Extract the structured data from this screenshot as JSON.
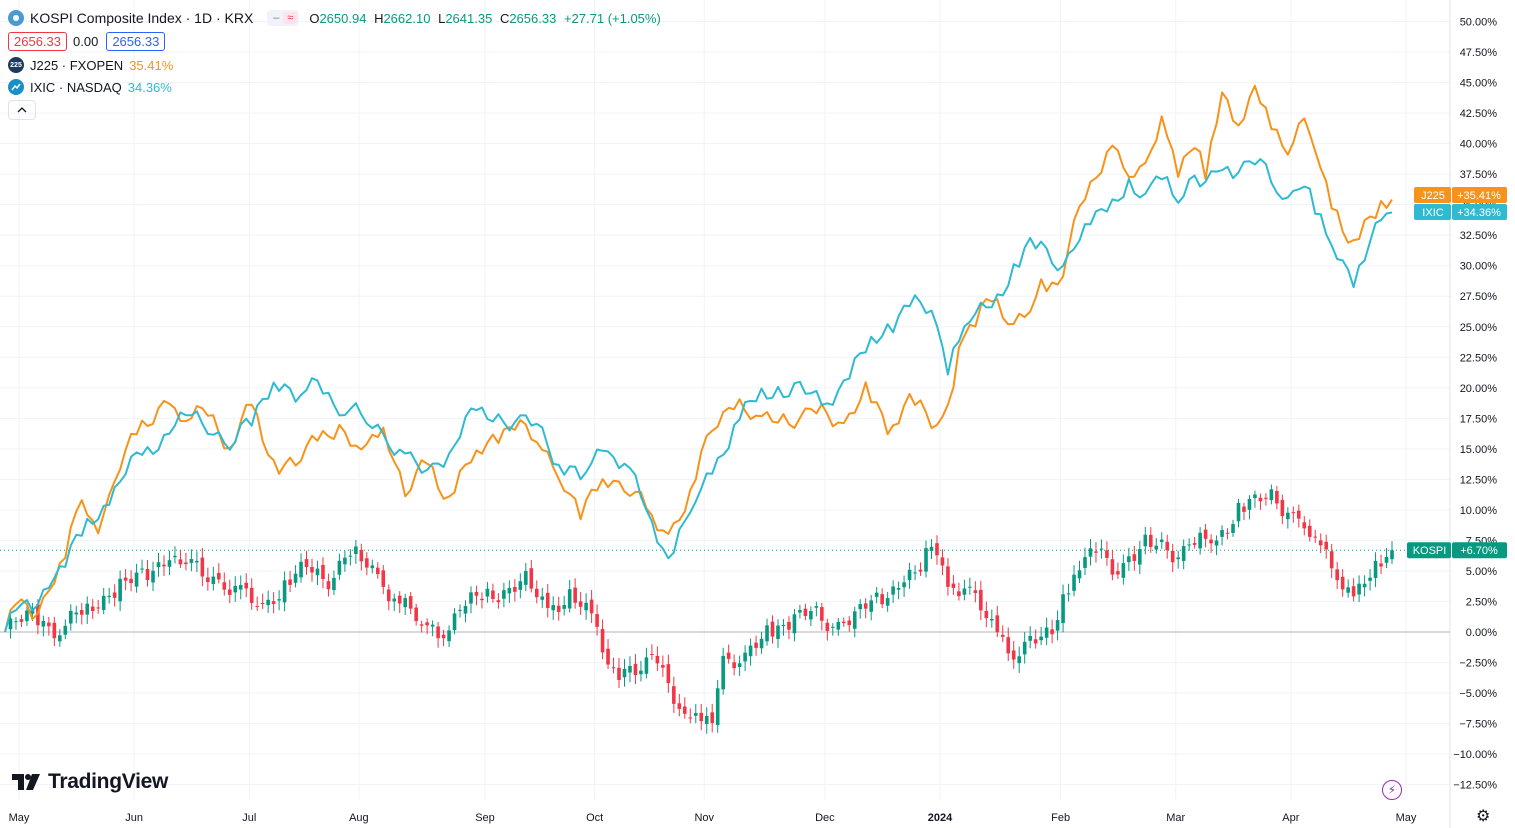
{
  "header": {
    "title": "KOSPI Composite Index · 1D · KRX",
    "toggle_a": "–",
    "toggle_b": "≈",
    "ohlc": [
      {
        "k": "O",
        "v": "2650.94"
      },
      {
        "k": "H",
        "v": "2662.10"
      },
      {
        "k": "L",
        "v": "2641.35"
      },
      {
        "k": "C",
        "v": "2656.33"
      }
    ],
    "change": "+27.71 (+1.05%)",
    "bid": "2656.33",
    "spread": "0.00",
    "ask": "2656.33"
  },
  "compares": [
    {
      "name": "J225 · FXOPEN",
      "pct": "35.41%",
      "logo": "225",
      "color": "#f7931a"
    },
    {
      "name": "IXIC · NASDAQ",
      "pct": "34.36%",
      "color": "#2ebad1"
    }
  ],
  "brand": "TradingView",
  "colors": {
    "up": "#089981",
    "down": "#f23645",
    "j225": "#f7931a",
    "ixic": "#2ebad1",
    "kospi_tag": "#089981",
    "grid": "#f0f3fa",
    "text": "#131722"
  },
  "chart_data": {
    "type": "line",
    "title": "KOSPI Composite Index · 1D · KRX",
    "ylim": [
      -13.5,
      51
    ],
    "y_ticks": [
      "50.00%",
      "47.50%",
      "45.00%",
      "42.50%",
      "40.00%",
      "37.50%",
      "35.00%",
      "32.50%",
      "30.00%",
      "27.50%",
      "25.00%",
      "22.50%",
      "20.00%",
      "17.50%",
      "15.00%",
      "12.50%",
      "10.00%",
      "7.50%",
      "5.00%",
      "2.50%",
      "0.00%",
      "−2.50%",
      "−5.00%",
      "−7.50%",
      "−10.00%",
      "−12.50%"
    ],
    "x_ticks": [
      "May",
      "Jun",
      "Jul",
      "Aug",
      "Sep",
      "Oct",
      "Nov",
      "Dec",
      "2024",
      "Feb",
      "Mar",
      "Apr",
      "May"
    ],
    "x_tick_index": [
      0,
      21,
      42,
      62,
      85,
      105,
      125,
      147,
      168,
      190,
      211,
      232,
      253
    ],
    "baseline": 0,
    "last_values": [
      {
        "label": "J225",
        "value": "+35.41%",
        "num": 35.41
      },
      {
        "label": "IXIC",
        "value": "+34.36%",
        "num": 34.36
      },
      {
        "label": "KOSPI",
        "value": "+6.70%",
        "num": 6.7
      }
    ],
    "series": [
      {
        "name": "J225",
        "anchors": [
          [
            0,
            0
          ],
          [
            2,
            2
          ],
          [
            5,
            1.5
          ],
          [
            8,
            3.5
          ],
          [
            11,
            6
          ],
          [
            14,
            11
          ],
          [
            17,
            8
          ],
          [
            20,
            13
          ],
          [
            24,
            16
          ],
          [
            29,
            19
          ],
          [
            33,
            17
          ],
          [
            37,
            18.5
          ],
          [
            41,
            15
          ],
          [
            45,
            18.5
          ],
          [
            49,
            14
          ],
          [
            53,
            13.5
          ],
          [
            57,
            16
          ],
          [
            61,
            17
          ],
          [
            65,
            14
          ],
          [
            69,
            17.5
          ],
          [
            73,
            11
          ],
          [
            77,
            14
          ],
          [
            81,
            11
          ],
          [
            85,
            14
          ],
          [
            89,
            16
          ],
          [
            93,
            17
          ],
          [
            97,
            15.5
          ],
          [
            101,
            13.5
          ],
          [
            105,
            9
          ],
          [
            109,
            13
          ],
          [
            113,
            12
          ],
          [
            117,
            10
          ],
          [
            121,
            8
          ],
          [
            125,
            11
          ],
          [
            129,
            17
          ],
          [
            133,
            19
          ],
          [
            137,
            17
          ],
          [
            141,
            18
          ],
          [
            145,
            17
          ],
          [
            149,
            18.5
          ],
          [
            153,
            17
          ],
          [
            157,
            19.5
          ],
          [
            161,
            17
          ],
          [
            165,
            19
          ],
          [
            169,
            17
          ],
          [
            172,
            18.5
          ],
          [
            174,
            23.5
          ],
          [
            177,
            25
          ],
          [
            180,
            27.5
          ],
          [
            183,
            26
          ],
          [
            186,
            25.5
          ],
          [
            189,
            28
          ],
          [
            192,
            28.5
          ],
          [
            196,
            35
          ],
          [
            199,
            36.5
          ],
          [
            202,
            40
          ],
          [
            205,
            38
          ],
          [
            208,
            37.5
          ],
          [
            211,
            42
          ],
          [
            214,
            38
          ],
          [
            217,
            40
          ],
          [
            219,
            37
          ],
          [
            222,
            44.5
          ],
          [
            225,
            42
          ],
          [
            228,
            44
          ],
          [
            231,
            41
          ],
          [
            234,
            40
          ],
          [
            237,
            42
          ],
          [
            239,
            38.5
          ],
          [
            242,
            35
          ],
          [
            246,
            32
          ],
          [
            250,
            34
          ],
          [
            253,
            35.41
          ]
        ]
      },
      {
        "name": "IXIC",
        "anchors": [
          [
            0,
            0
          ],
          [
            2,
            1.5
          ],
          [
            5,
            2
          ],
          [
            8,
            4
          ],
          [
            11,
            5.5
          ],
          [
            14,
            8
          ],
          [
            17,
            10
          ],
          [
            20,
            12
          ],
          [
            24,
            14
          ],
          [
            27,
            15
          ],
          [
            30,
            16.5
          ],
          [
            33,
            17.5
          ],
          [
            37,
            17
          ],
          [
            41,
            15.5
          ],
          [
            45,
            17
          ],
          [
            49,
            21
          ],
          [
            53,
            19
          ],
          [
            57,
            20.5
          ],
          [
            61,
            18.5
          ],
          [
            65,
            17.5
          ],
          [
            69,
            16.5
          ],
          [
            73,
            14
          ],
          [
            77,
            13
          ],
          [
            81,
            15
          ],
          [
            85,
            17.5
          ],
          [
            89,
            18
          ],
          [
            93,
            17
          ],
          [
            97,
            17
          ],
          [
            101,
            14
          ],
          [
            105,
            12.5
          ],
          [
            109,
            15
          ],
          [
            113,
            14
          ],
          [
            117,
            10
          ],
          [
            121,
            6
          ],
          [
            125,
            10
          ],
          [
            129,
            13
          ],
          [
            133,
            17
          ],
          [
            137,
            19
          ],
          [
            141,
            20
          ],
          [
            145,
            20
          ],
          [
            149,
            18.5
          ],
          [
            153,
            20.5
          ],
          [
            157,
            23
          ],
          [
            161,
            25
          ],
          [
            165,
            27
          ],
          [
            169,
            26
          ],
          [
            172,
            22
          ],
          [
            175,
            25.5
          ],
          [
            178,
            26
          ],
          [
            181,
            27.5
          ],
          [
            184,
            30
          ],
          [
            187,
            31.5
          ],
          [
            190,
            31
          ],
          [
            193,
            30
          ],
          [
            196,
            32.5
          ],
          [
            199,
            34
          ],
          [
            202,
            35.5
          ],
          [
            205,
            37
          ],
          [
            208,
            35
          ],
          [
            211,
            37.5
          ],
          [
            214,
            36
          ],
          [
            217,
            37
          ],
          [
            219,
            36
          ],
          [
            222,
            38.5
          ],
          [
            225,
            38
          ],
          [
            228,
            38.5
          ],
          [
            231,
            37
          ],
          [
            234,
            35.5
          ],
          [
            237,
            37
          ],
          [
            239,
            34
          ],
          [
            242,
            32
          ],
          [
            246,
            29
          ],
          [
            250,
            32.5
          ],
          [
            253,
            34.36
          ]
        ]
      },
      {
        "name": "KOSPI",
        "anchors": [
          [
            0,
            0
          ],
          [
            5,
            1.5
          ],
          [
            10,
            0
          ],
          [
            15,
            2
          ],
          [
            20,
            3.5
          ],
          [
            25,
            4.5
          ],
          [
            29,
            6
          ],
          [
            33,
            5.5
          ],
          [
            38,
            4.5
          ],
          [
            43,
            3
          ],
          [
            47,
            2
          ],
          [
            51,
            4
          ],
          [
            55,
            5
          ],
          [
            59,
            4.5
          ],
          [
            63,
            6.5
          ],
          [
            67,
            5
          ],
          [
            71,
            3
          ],
          [
            75,
            1
          ],
          [
            79,
            0
          ],
          [
            83,
            1.5
          ],
          [
            87,
            3
          ],
          [
            91,
            3.5
          ],
          [
            95,
            4
          ],
          [
            99,
            2
          ],
          [
            103,
            3
          ],
          [
            107,
            1
          ],
          [
            111,
            -3
          ],
          [
            115,
            -3.5
          ],
          [
            119,
            -2
          ],
          [
            123,
            -6
          ],
          [
            127,
            -8
          ],
          [
            129,
            -7
          ],
          [
            131,
            -2
          ],
          [
            135,
            -2.5
          ],
          [
            139,
            0
          ],
          [
            143,
            1
          ],
          [
            147,
            1.5
          ],
          [
            151,
            0.5
          ],
          [
            155,
            1.5
          ],
          [
            159,
            2.5
          ],
          [
            163,
            4
          ],
          [
            167,
            5
          ],
          [
            169,
            6.8
          ],
          [
            172,
            4.5
          ],
          [
            176,
            3
          ],
          [
            180,
            0.5
          ],
          [
            184,
            -1.5
          ],
          [
            188,
            -1
          ],
          [
            191,
            0
          ],
          [
            193,
            3
          ],
          [
            196,
            5
          ],
          [
            199,
            6.5
          ],
          [
            202,
            5.5
          ],
          [
            205,
            6
          ],
          [
            208,
            7
          ],
          [
            211,
            7
          ],
          [
            214,
            6.5
          ],
          [
            217,
            7.5
          ],
          [
            219,
            7
          ],
          [
            222,
            8
          ],
          [
            225,
            10.5
          ],
          [
            228,
            10.5
          ],
          [
            231,
            11
          ],
          [
            234,
            10
          ],
          [
            237,
            9
          ],
          [
            239,
            7
          ],
          [
            242,
            5.5
          ],
          [
            246,
            3
          ],
          [
            250,
            5
          ],
          [
            253,
            6.7
          ]
        ]
      }
    ]
  }
}
